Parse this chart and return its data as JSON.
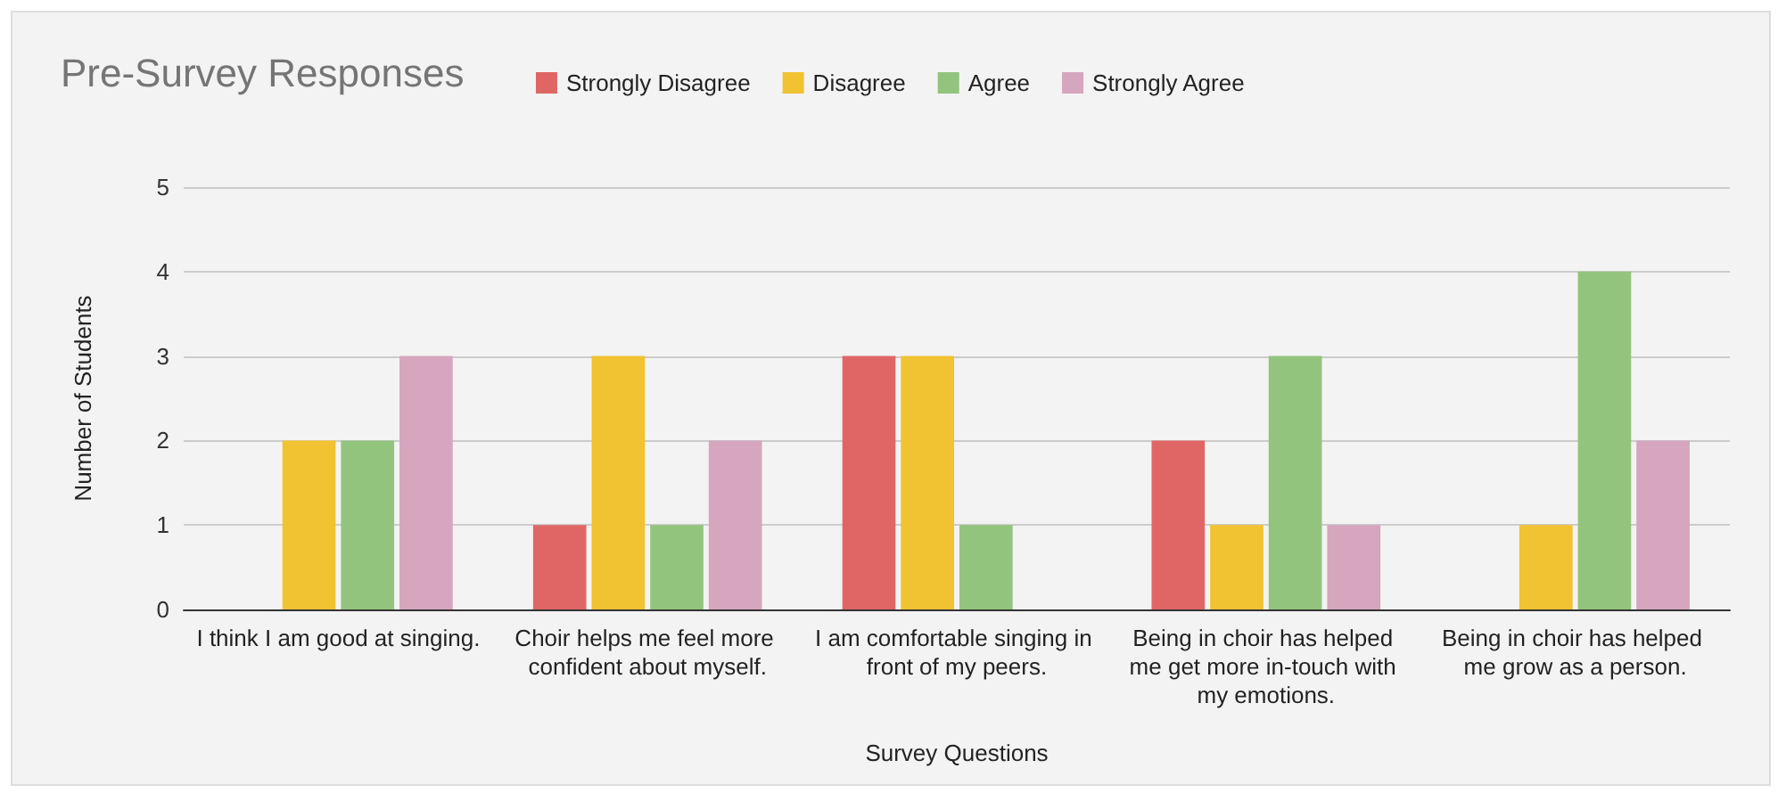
{
  "chart_data": {
    "type": "bar",
    "title": "Pre-Survey Responses",
    "xlabel": "Survey Questions",
    "ylabel": "Number of Students",
    "categories": [
      "I think I am good at singing.",
      "Choir helps me feel more confident about myself.",
      "I am comfortable singing in front of my peers.",
      "Being in choir has helped me get more in-touch with my emotions.",
      "Being in choir has helped me grow as a person."
    ],
    "series": [
      {
        "name": "Strongly Disagree",
        "color": "#e06666",
        "values": [
          0,
          1,
          3,
          2,
          0
        ]
      },
      {
        "name": "Disagree",
        "color": "#f1c232",
        "values": [
          2,
          3,
          3,
          1,
          1
        ]
      },
      {
        "name": "Agree",
        "color": "#93c47d",
        "values": [
          2,
          1,
          1,
          3,
          4
        ]
      },
      {
        "name": "Strongly Agree",
        "color": "#d5a6bd",
        "values": [
          3,
          2,
          0,
          1,
          2
        ]
      }
    ],
    "ylim": [
      0,
      5
    ],
    "yticks": [
      0,
      1,
      2,
      3,
      4,
      5
    ],
    "grid": "y",
    "legend": "top"
  }
}
